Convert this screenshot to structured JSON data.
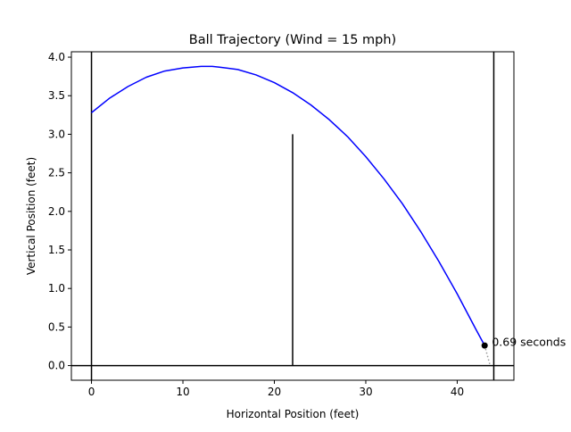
{
  "chart_data": {
    "type": "line",
    "title": "Ball Trajectory (Wind = 15 mph)",
    "xlabel": "Horizontal Position (feet)",
    "ylabel": "Vertical Position (feet)",
    "xlim": [
      -2.2,
      46.2
    ],
    "ylim": [
      -0.19,
      4.07
    ],
    "xticks": [
      0,
      10,
      20,
      30,
      40
    ],
    "yticks": [
      0.0,
      0.5,
      1.0,
      1.5,
      2.0,
      2.5,
      3.0,
      3.5,
      4.0
    ],
    "grid": false,
    "legend": "none",
    "series": [
      {
        "color": "#0000ff",
        "x": [
          0,
          2,
          4,
          6,
          8,
          10,
          12,
          13.2,
          14,
          16,
          18,
          20,
          22,
          24,
          26,
          28,
          30,
          32,
          34,
          36,
          38,
          40,
          42,
          43
        ],
        "y": [
          3.28,
          3.47,
          3.62,
          3.74,
          3.82,
          3.86,
          3.88,
          3.88,
          3.87,
          3.84,
          3.77,
          3.67,
          3.54,
          3.38,
          3.19,
          2.97,
          2.71,
          2.42,
          2.1,
          1.74,
          1.35,
          0.93,
          0.48,
          0.26
        ]
      }
    ],
    "reference_lines": {
      "vertical": [
        {
          "x": 0,
          "y0": -0.19,
          "y1": 4.07,
          "color": "#000000"
        },
        {
          "x": 22,
          "y0": 0,
          "y1": 3.0,
          "color": "#000000"
        },
        {
          "x": 44,
          "y0": -0.19,
          "y1": 4.07,
          "color": "#000000"
        }
      ],
      "horizontal": [
        {
          "y": 0,
          "color": "#000000"
        }
      ]
    },
    "marker": {
      "x": 43,
      "y": 0.26,
      "color": "#000000"
    },
    "dotted_segment": {
      "x": [
        43,
        43.6
      ],
      "y": [
        0.26,
        0.0
      ],
      "color": "#999999"
    },
    "annotation": {
      "text": "0.69 seconds",
      "x": 43.5,
      "y": 0.26
    }
  }
}
